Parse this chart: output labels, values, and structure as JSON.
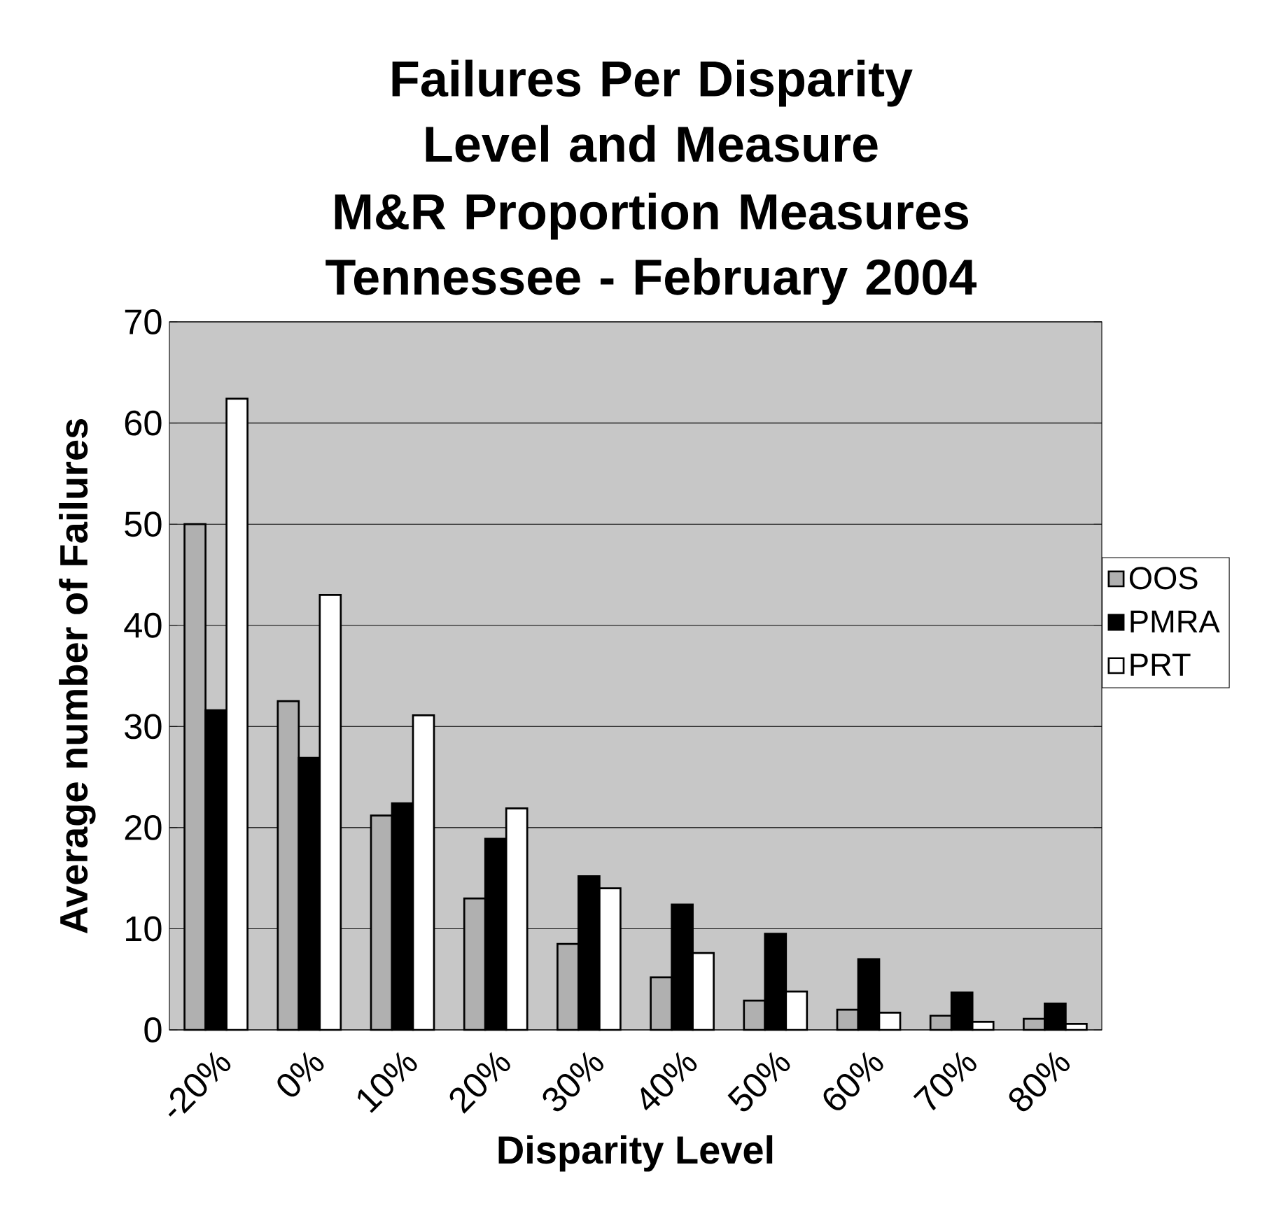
{
  "chart_data": {
    "type": "bar",
    "title": "Failures Per Disparity Level and Measure",
    "subtitle": "M&R Proportion Measures Tennessee - February 2004",
    "xlabel": "Disparity Level",
    "ylabel": "Average number of Failures",
    "categories": [
      "-20%",
      "0%",
      "10%",
      "20%",
      "30%",
      "40%",
      "50%",
      "60%",
      "70%",
      "80%"
    ],
    "series": [
      {
        "name": "OOS",
        "color": "#b0b0b0",
        "values": [
          50,
          32.5,
          21.2,
          13,
          8.5,
          5.2,
          2.9,
          2,
          1.4,
          1.1
        ]
      },
      {
        "name": "PMRA",
        "color": "#000000",
        "values": [
          31.6,
          26.9,
          22.4,
          18.9,
          15.2,
          12.4,
          9.5,
          7,
          3.7,
          2.6
        ]
      },
      {
        "name": "PRT",
        "color": "#ffffff",
        "values": [
          62.4,
          43,
          31.1,
          21.9,
          14,
          7.6,
          3.8,
          1.7,
          0.8,
          0.6
        ]
      }
    ],
    "ylim": [
      0,
      70
    ],
    "yticks": [
      0,
      10,
      20,
      30,
      40,
      50,
      60,
      70
    ],
    "grid": "y",
    "legend": "right"
  }
}
